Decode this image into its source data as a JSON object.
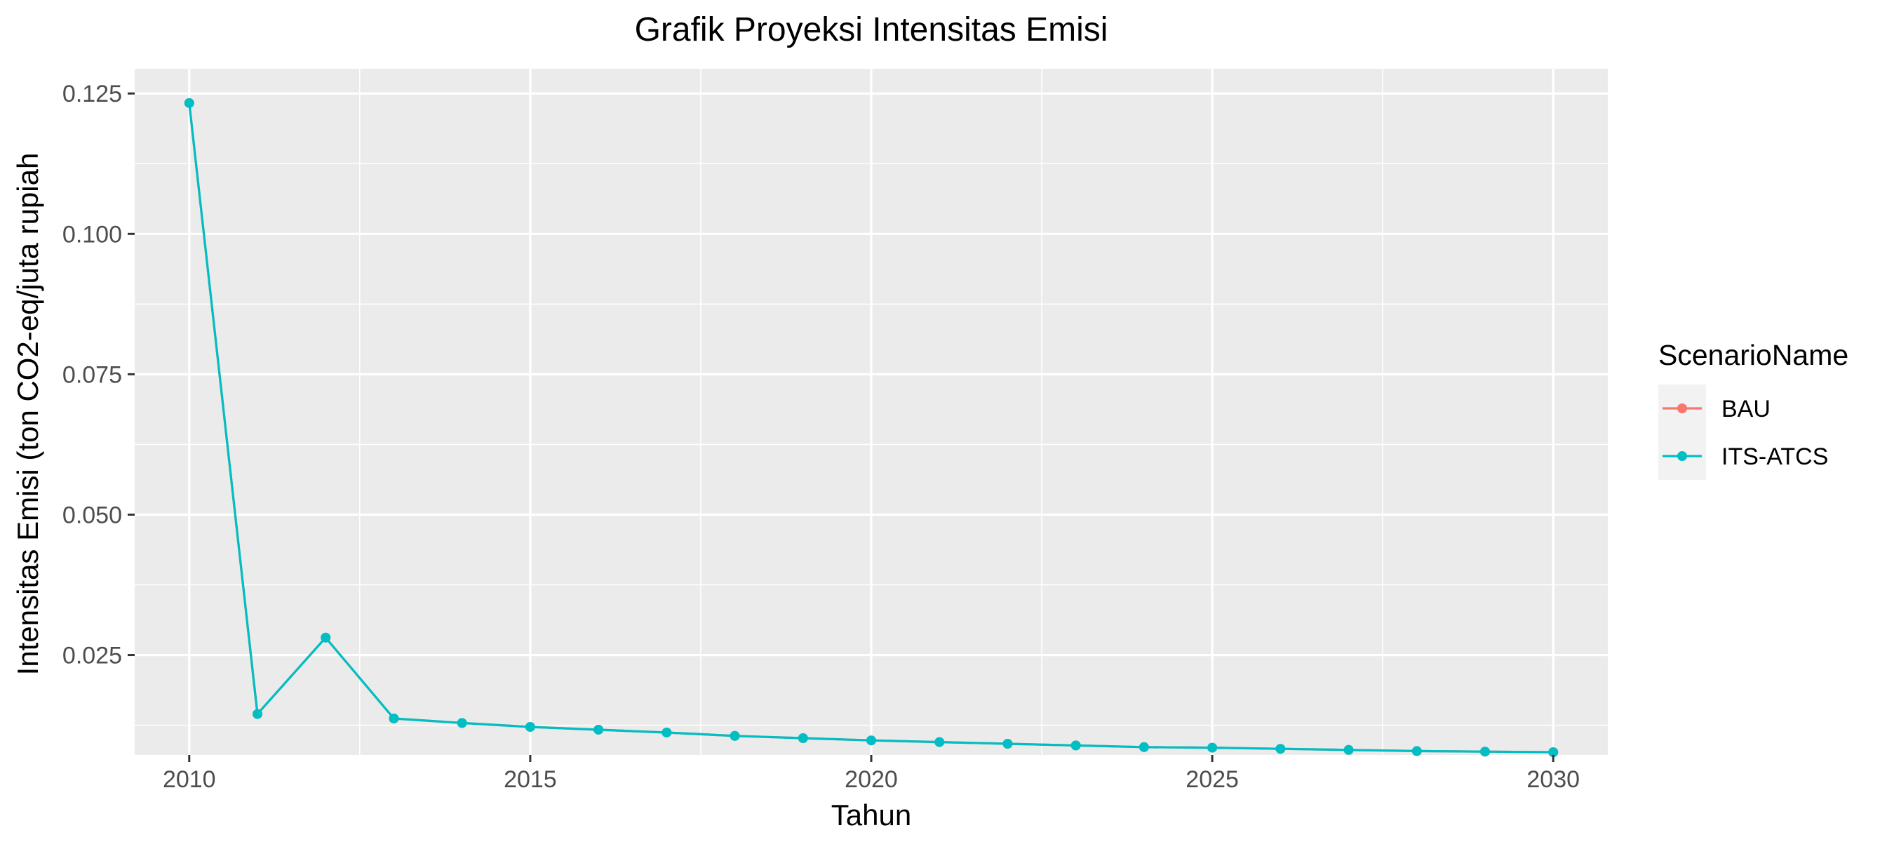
{
  "chart_data": {
    "type": "line",
    "title": "Grafik Proyeksi Intensitas Emisi",
    "xlabel": "Tahun",
    "ylabel": "Intensitas Emisi (ton CO2-eq/juta rupiah",
    "xlim": [
      2009.2,
      2030.8
    ],
    "ylim": [
      0.0072,
      0.1294
    ],
    "x_ticks": [
      2010,
      2015,
      2020,
      2025,
      2030
    ],
    "x_tick_labels": [
      "2010",
      "2015",
      "2020",
      "2025",
      "2030"
    ],
    "y_ticks": [
      0.025,
      0.05,
      0.075,
      0.1,
      0.125
    ],
    "y_tick_labels": [
      "0.025",
      "0.050",
      "0.075",
      "0.100",
      "0.125"
    ],
    "grid": true,
    "legend": {
      "title": "ScenarioName",
      "placement": "right"
    },
    "x": [
      2010,
      2011,
      2012,
      2013,
      2014,
      2015,
      2016,
      2017,
      2018,
      2019,
      2020,
      2021,
      2022,
      2023,
      2024,
      2025,
      2026,
      2027,
      2028,
      2029,
      2030
    ],
    "series": [
      {
        "name": "BAU",
        "color": "#F8766D",
        "values": [
          0.1233,
          0.0145,
          0.0281,
          0.0137,
          0.0129,
          0.0122,
          0.0117,
          0.0112,
          0.0106,
          0.0102,
          0.0098,
          0.0095,
          0.0092,
          0.0089,
          0.0086,
          0.0085,
          0.0083,
          0.0081,
          0.0079,
          0.0078,
          0.0077
        ]
      },
      {
        "name": "ITS-ATCS",
        "color": "#00BFC4",
        "values": [
          0.1233,
          0.0145,
          0.0281,
          0.0137,
          0.0129,
          0.0122,
          0.0117,
          0.0112,
          0.0106,
          0.0102,
          0.0098,
          0.0095,
          0.0092,
          0.0089,
          0.0086,
          0.0085,
          0.0083,
          0.0081,
          0.0079,
          0.0078,
          0.0077
        ]
      }
    ]
  }
}
